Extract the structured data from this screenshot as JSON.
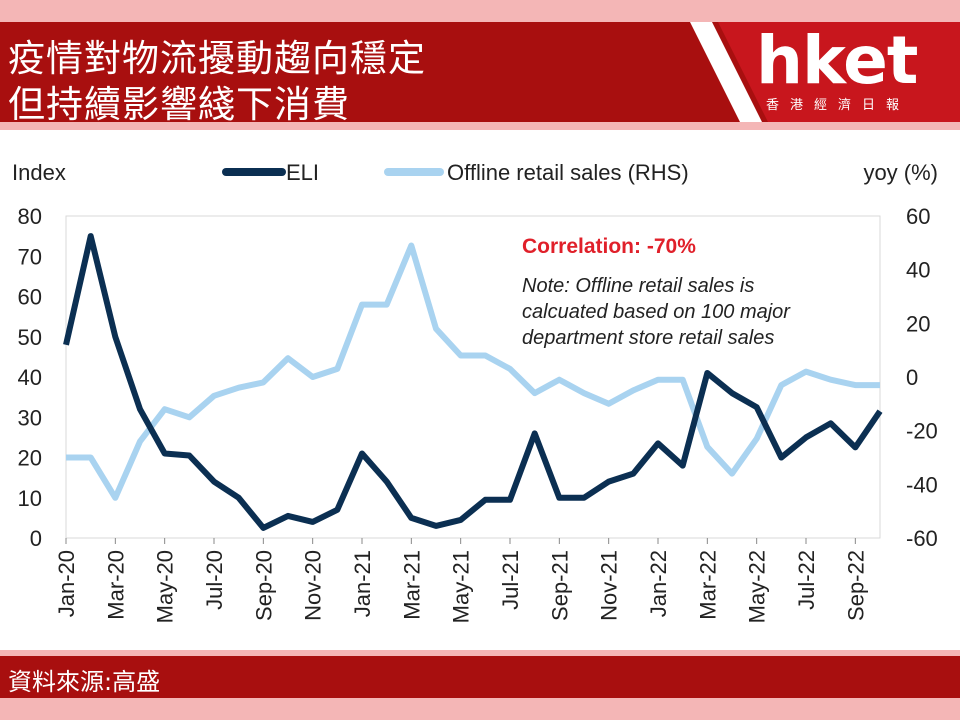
{
  "header": {
    "title_line1": "疫情對物流擾動趨向穩定",
    "title_line2": "但持續影響綫下消費"
  },
  "logo": {
    "brand": "hket",
    "tagline": "香港經濟日報"
  },
  "footer": {
    "source": "資料來源:高盛"
  },
  "colors": {
    "eli": "#0b2f52",
    "retail": "#a9d3f0",
    "header_bg": "#a80f0f",
    "pink_band": "#f4b6b6",
    "correlation_red": "#e0202a"
  },
  "chart_data": {
    "type": "line",
    "left_axis_label": "Index",
    "right_axis_label": "yoy (%)",
    "ylim_left": [
      0,
      80
    ],
    "ylim_right": [
      -60,
      60
    ],
    "yticks_left": [
      "0",
      "10",
      "20",
      "30",
      "40",
      "50",
      "60",
      "70",
      "80"
    ],
    "yticks_right": [
      "-60",
      "-40",
      "-20",
      "0",
      "20",
      "40",
      "60"
    ],
    "x": [
      "Jan-20",
      "Feb-20",
      "Mar-20",
      "Apr-20",
      "May-20",
      "Jun-20",
      "Jul-20",
      "Aug-20",
      "Sep-20",
      "Oct-20",
      "Nov-20",
      "Dec-20",
      "Jan-21",
      "Feb-21",
      "Mar-21",
      "Apr-21",
      "May-21",
      "Jun-21",
      "Jul-21",
      "Aug-21",
      "Sep-21",
      "Oct-21",
      "Nov-21",
      "Dec-21",
      "Jan-22",
      "Feb-22",
      "Mar-22",
      "Apr-22",
      "May-22",
      "Jun-22",
      "Jul-22",
      "Aug-22",
      "Sep-22",
      "Oct-22"
    ],
    "x_tick_labels": [
      "Jan-20",
      "Mar-20",
      "May-20",
      "Jul-20",
      "Sep-20",
      "Nov-20",
      "Jan-21",
      "Mar-21",
      "May-21",
      "Jul-21",
      "Sep-21",
      "Nov-21",
      "Jan-22",
      "Mar-22",
      "May-22",
      "Jul-22",
      "Sep-22"
    ],
    "series": [
      {
        "name": "ELI",
        "axis": "left",
        "values": [
          48,
          75,
          50,
          32,
          21,
          20.5,
          14,
          10,
          2.5,
          5.5,
          4,
          7,
          21,
          14,
          5,
          3,
          4.5,
          9.5,
          9.5,
          26,
          10,
          10,
          14,
          16,
          23.5,
          18,
          41,
          36,
          32.5,
          20,
          25,
          28.5,
          22.5,
          31.5
        ]
      },
      {
        "name": "Offline retail sales (RHS)",
        "axis": "right",
        "values": [
          -30,
          -30,
          -45,
          -24,
          -12,
          -15,
          -7,
          -4,
          -2,
          7,
          0,
          3,
          27,
          27,
          49,
          18,
          8,
          8,
          3,
          -6,
          -1,
          -6,
          -10,
          -5,
          -1,
          -1,
          -26,
          -36,
          -23,
          -3,
          2,
          -1,
          -3,
          -3
        ]
      }
    ],
    "legend_position": "top",
    "annotations": {
      "correlation": "Correlation: -70%",
      "note_lines": [
        "Note: Offline retail sales is",
        "calcuated based on 100 major",
        "department store retail sales"
      ]
    }
  }
}
